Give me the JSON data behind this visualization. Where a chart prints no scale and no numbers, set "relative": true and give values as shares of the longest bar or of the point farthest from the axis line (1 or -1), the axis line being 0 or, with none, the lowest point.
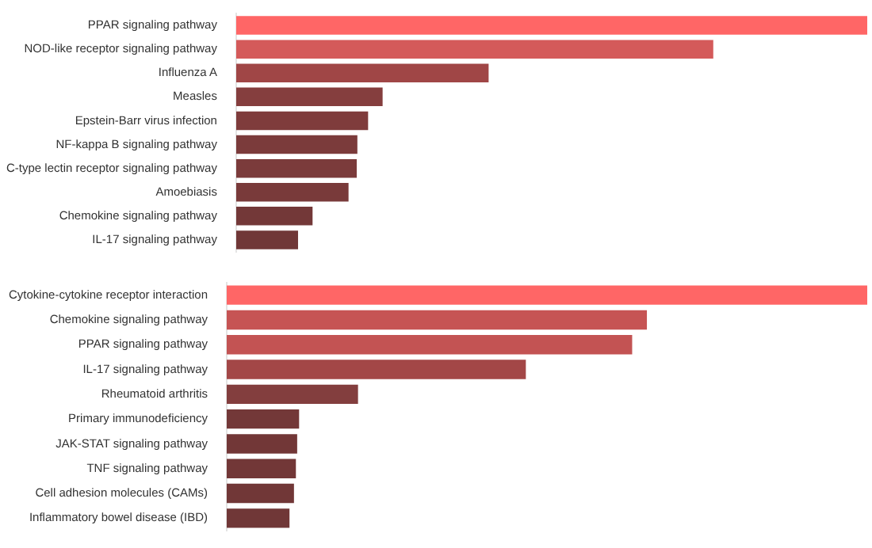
{
  "chart_data": [
    {
      "type": "bar",
      "orientation": "horizontal",
      "relative": true,
      "tick_labels": "y",
      "categories": [
        "PPAR signaling pathway",
        "NOD-like receptor signaling pathway",
        "Influenza A",
        "Measles",
        "Epstein-Barr virus infection",
        "NF-kappa B signaling pathway",
        "C-type lectin receptor signaling pathway",
        "Amoebiasis",
        "Chemokine signaling pathway",
        "IL-17 signaling pathway"
      ],
      "values": [
        1,
        0.756,
        0.4,
        0.232,
        0.209,
        0.192,
        0.191,
        0.178,
        0.121,
        0.098
      ],
      "colors": [
        "#ff6666",
        "#d45a5a",
        "#a04646",
        "#853e3e",
        "#7f3c3c",
        "#7b3b3b",
        "#7b3b3b",
        "#793a3a",
        "#733838",
        "#703737"
      ]
    },
    {
      "type": "bar",
      "orientation": "horizontal",
      "relative": true,
      "tick_labels": "y",
      "categories": [
        "Cytokine-cytokine receptor interaction",
        "Chemokine signaling pathway",
        "PPAR signaling pathway",
        "IL-17 signaling pathway",
        "Rheumatoid arthritis",
        "Primary immunodeficiency",
        "JAK-STAT signaling pathway",
        "TNF signaling pathway",
        "Cell adhesion molecules (CAMs)",
        "Inflammatory bowel disease (IBD)"
      ],
      "values": [
        1,
        0.656,
        0.633,
        0.467,
        0.205,
        0.113,
        0.11,
        0.108,
        0.105,
        0.098
      ],
      "colors": [
        "#ff6666",
        "#c65454",
        "#c35353",
        "#a34747",
        "#833e3e",
        "#733838",
        "#723737",
        "#723737",
        "#713737",
        "#703737"
      ]
    }
  ]
}
